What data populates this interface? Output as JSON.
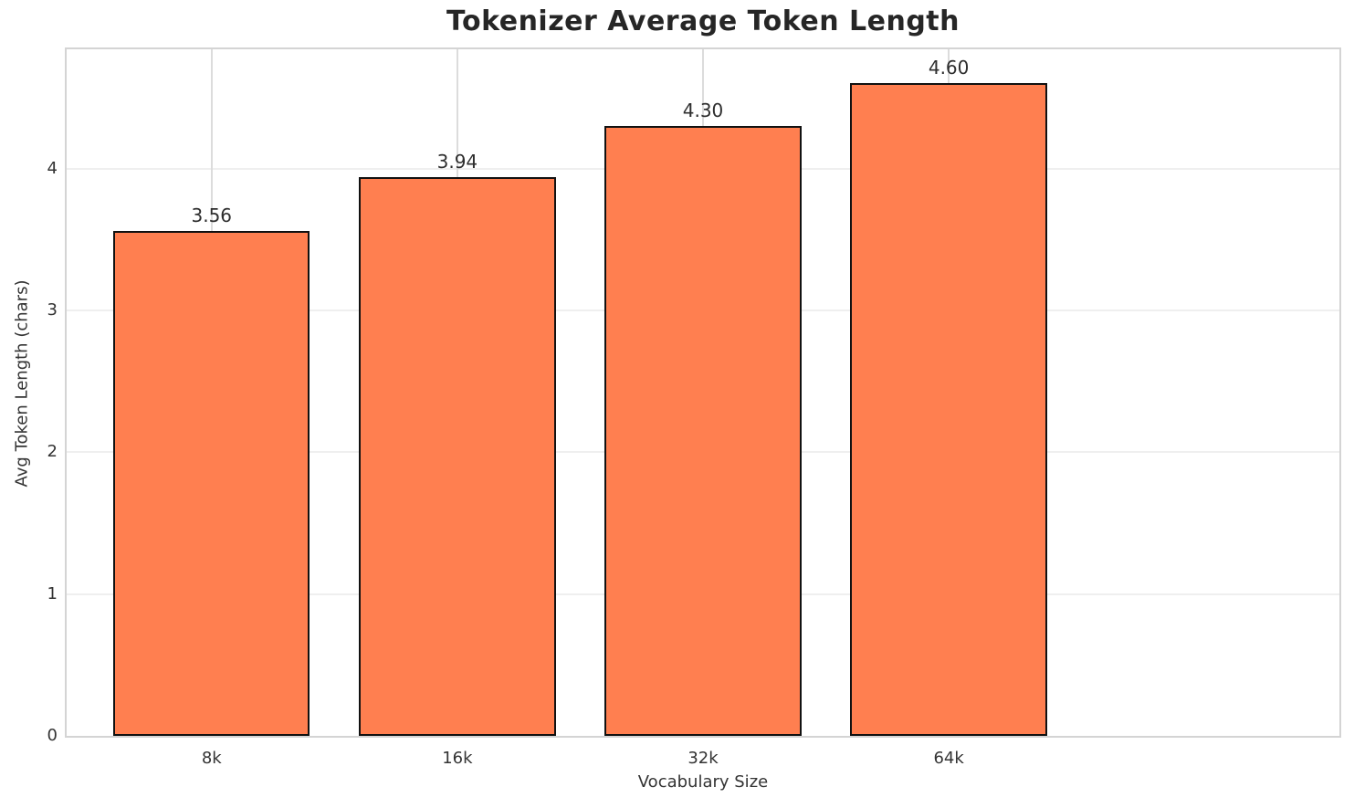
{
  "chart_data": {
    "type": "bar",
    "title": "Tokenizer Average Token Length",
    "xlabel": "Vocabulary Size",
    "ylabel": "Avg Token Length (chars)",
    "categories": [
      "8k",
      "16k",
      "32k",
      "64k"
    ],
    "values": [
      3.56,
      3.94,
      4.3,
      4.6
    ],
    "value_labels": [
      "3.56",
      "3.94",
      "4.30",
      "4.60"
    ],
    "yticks": [
      0,
      1,
      2,
      3,
      4
    ],
    "ylim": [
      0,
      4.84
    ],
    "bar_color": "#FF7F50",
    "bar_edge_color": "#111111",
    "grid": true,
    "grid_vertical": true,
    "legend_position": "none",
    "background_color": "#ffffff"
  }
}
